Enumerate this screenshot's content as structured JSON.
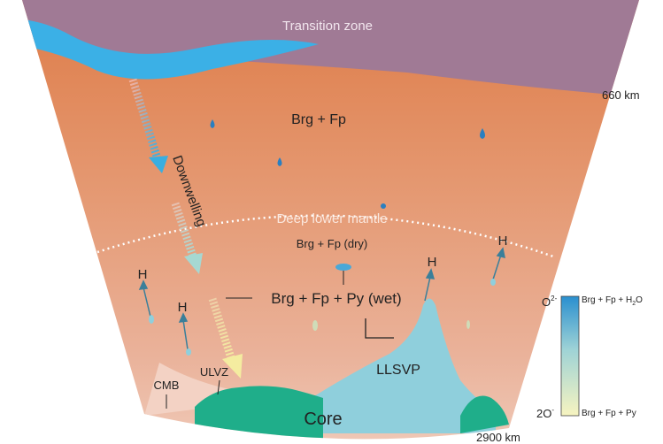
{
  "zone_top": "Transition zone",
  "depth_top": "660 km",
  "depth_bottom": "2900 km",
  "upper_assemblage": "Brg + Fp",
  "downwelling": "Downwelling",
  "deep_lower_mantle": "Deep lower mantle",
  "dry_assemblage": "Brg + Fp (dry)",
  "wet_assemblage": "Brg + Fp + Py (wet)",
  "hydrogen_labels": [
    "H",
    "H",
    "H",
    "H"
  ],
  "llsvp": "LLSVP",
  "cmb": "CMB",
  "ulvz": "ULVZ",
  "core": "Core",
  "colorbar": {
    "top": {
      "ion": "O",
      "charge": "2-"
    },
    "bottom": {
      "ion": "2O",
      "charge": "-"
    },
    "top_assemblage": {
      "text": "Brg + Fp + H",
      "subscript": "2",
      "suffix": "O"
    },
    "bottom_assemblage": "Brg + Fp + Py"
  }
}
